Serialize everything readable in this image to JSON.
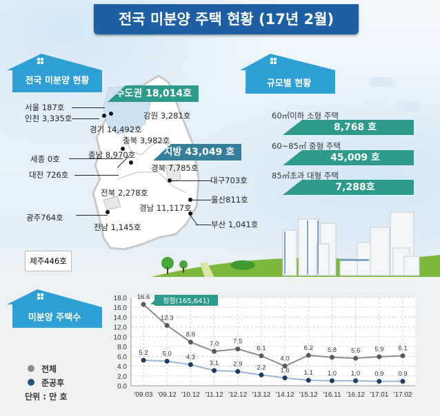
{
  "title": "전국 미분양 주택 현황 (17년 2월)",
  "national": {
    "section_label": "전국 미분양 현황",
    "capital_banner": "수도권 18,014호",
    "local_banner": "지방 43,049 호",
    "regions": [
      {
        "name": "서울",
        "value": "187호",
        "label": "서울 187호"
      },
      {
        "name": "인천",
        "value": "3,335호",
        "label": "인천 3,335호"
      },
      {
        "name": "경기",
        "value": "14,492호",
        "label": "경기 14,492호"
      },
      {
        "name": "강원",
        "value": "3,281호",
        "label": "강원 3,281호"
      },
      {
        "name": "충북",
        "value": "3,982호",
        "label": "충북 3,982호"
      },
      {
        "name": "세종",
        "value": "0호",
        "label": "세종 0호"
      },
      {
        "name": "충남",
        "value": "8,970호",
        "label": "충남 8,970호"
      },
      {
        "name": "대전",
        "value": "726호",
        "label": "대전 726호"
      },
      {
        "name": "경북",
        "value": "7,785호",
        "label": "경북 7,785호"
      },
      {
        "name": "대구",
        "value": "703호",
        "label": "대구703호"
      },
      {
        "name": "전북",
        "value": "2,278호",
        "label": "전북 2,278호"
      },
      {
        "name": "울산",
        "value": "811호",
        "label": "울산811호"
      },
      {
        "name": "경남",
        "value": "11,117호",
        "label": "경남 11,117호"
      },
      {
        "name": "광주",
        "value": "764호",
        "label": "광주764호"
      },
      {
        "name": "부산",
        "value": "1,041호",
        "label": "부산 1,041호"
      },
      {
        "name": "전남",
        "value": "1,145호",
        "label": "전남 1,145호"
      },
      {
        "name": "제주",
        "value": "446호",
        "label": "제주446호"
      }
    ]
  },
  "by_size": {
    "section_label": "규모별 현황",
    "items": [
      {
        "label": "60㎡이하 소형 주택",
        "value": "8,768 호"
      },
      {
        "label": "60~85㎡ 중형 주택",
        "value": "45,009 호"
      },
      {
        "label": "85㎡초과 대형 주택",
        "value": "7,288호"
      }
    ]
  },
  "trend": {
    "section_label": "미분양 주택수",
    "legend": [
      {
        "name": "전체",
        "color": "#8a8a8a"
      },
      {
        "name": "준공후",
        "color": "#2a4f7a"
      }
    ],
    "unit": "단위 : 만 호",
    "peak_label": "정점(165,641)"
  },
  "colors": {
    "title_bg": "#1f5fa3",
    "house": "#2fa0d6",
    "banner_teal": "#2e9a8c",
    "banner_local": "#357f9c",
    "total_line": "#8a8a8a",
    "completed_line": "#2a4f7a"
  },
  "chart_data": {
    "type": "line",
    "title": "미분양 주택수",
    "xlabel": "",
    "ylabel": "단위 : 만 호",
    "categories": [
      "'09.03",
      "'09.12",
      "'10.12",
      "'11.12",
      "'12.12",
      "'13.12",
      "'14.12",
      "'15.12",
      "'16.11",
      "'16.12",
      "'17.01",
      "'17.02"
    ],
    "series": [
      {
        "name": "전체",
        "values": [
          16.6,
          12.3,
          8.9,
          7.0,
          7.5,
          6.1,
          4.0,
          6.2,
          5.8,
          5.6,
          5.9,
          6.1
        ]
      },
      {
        "name": "준공후",
        "values": [
          5.2,
          5.0,
          4.3,
          3.1,
          2.9,
          2.2,
          1.6,
          1.1,
          1.0,
          1.0,
          0.9,
          0.9
        ]
      }
    ],
    "yticks": [
      "0.0",
      "2.0",
      "4.0",
      "6.0",
      "8.0",
      "10.0",
      "12.0",
      "14.0",
      "16.0",
      "18.0"
    ],
    "ylim": [
      0,
      18
    ],
    "grid": true,
    "annotations": [
      {
        "x": "'09.03",
        "text": "정점(165,641)"
      }
    ],
    "legend_position": "left"
  }
}
